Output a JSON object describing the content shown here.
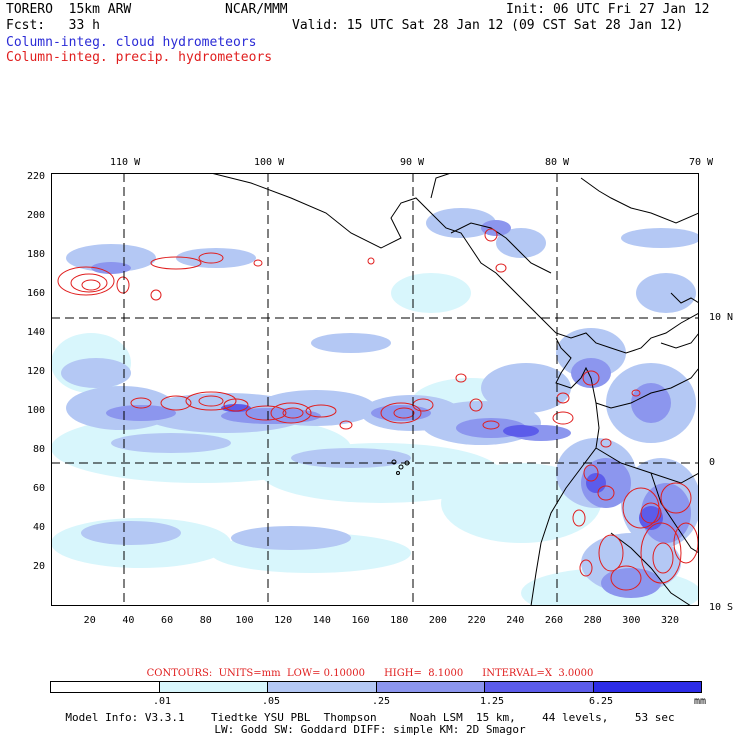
{
  "header": {
    "model": "TORERO  15km ARW",
    "org": "NCAR/MMM",
    "init": "Init: 06 UTC Fri 27 Jan 12",
    "fcst": "Fcst:   33 h",
    "valid": "Valid: 15 UTC Sat 28 Jan 12 (09 CST Sat 28 Jan 12)",
    "field1": "Column-integ. cloud hydrometeors",
    "field2": "Column-integ. precip. hydrometeors"
  },
  "map": {
    "lon_labels": [
      "110 W",
      "100 W",
      "90 W",
      "80 W",
      "70 W"
    ],
    "lat_labels": [
      "10 N",
      "0",
      "10 S"
    ],
    "x_ticks": [
      "20",
      "40",
      "60",
      "80",
      "100",
      "120",
      "140",
      "160",
      "180",
      "200",
      "220",
      "240",
      "260",
      "280",
      "300",
      "320"
    ],
    "y_ticks": [
      "220",
      "200",
      "180",
      "160",
      "140",
      "120",
      "100",
      "80",
      "60",
      "40",
      "20"
    ],
    "x_range": [
      0,
      335
    ],
    "y_range": [
      0,
      222
    ]
  },
  "contours": {
    "text": "CONTOURS:  UNITS=mm  LOW= 0.10000      HIGH=  8.1000      INTERVAL=X  3.0000",
    "color": "#e01e1e"
  },
  "colorbar": {
    "colors": [
      "#ffffff",
      "#d8f6fc",
      "#b4c8f4",
      "#8c96ee",
      "#5c5cea",
      "#2c2ce6"
    ],
    "labels": [
      ".01",
      ".05",
      ".25",
      "1.25",
      "6.25"
    ],
    "unit": "mm"
  },
  "model_info": {
    "line1": "Model Info: V3.3.1    Tiedtke YSU PBL  Thompson     Noah LSM  15 km,    44 levels,    53 sec",
    "line2": "LW: Godd SW: Goddard DIFF: simple KM: 2D Smagor"
  },
  "colors": {
    "cloud_light": "#d8f6fc",
    "cloud_mid": "#b4c8f4",
    "cloud_strong": "#8c96ee",
    "cloud_heavy": "#5c5cea",
    "precip": "#e01e1e",
    "title_blue": "#2b2bd6"
  }
}
